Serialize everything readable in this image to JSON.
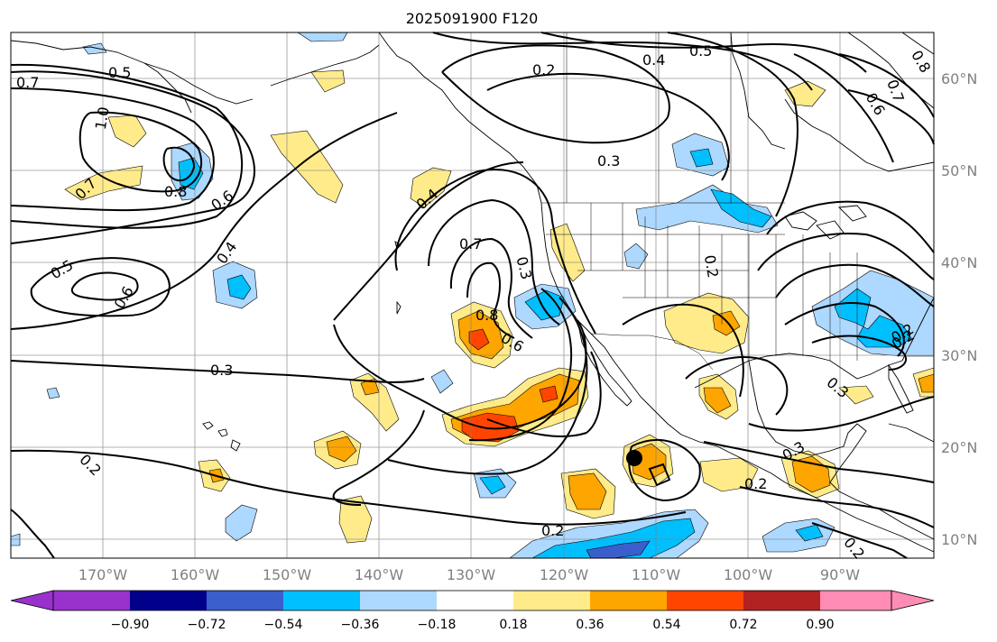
{
  "title": "2025091900 F120",
  "lon_ticks": [
    "170°W",
    "160°W",
    "150°W",
    "140°W",
    "130°W",
    "120°W",
    "110°W",
    "100°W",
    "90°W"
  ],
  "lat_ticks": [
    "60°N",
    "50°N",
    "40°N",
    "30°N",
    "20°N",
    "10°N"
  ],
  "colorbar": {
    "colors": [
      "#9932cc",
      "#00008b",
      "#3a5fcd",
      "#00bfff",
      "#add8ff",
      "#ffffff",
      "#ffeb8a",
      "#ffa500",
      "#ff4500",
      "#b22222",
      "#ff8cb4"
    ],
    "ticks": [
      "−0.90",
      "−0.72",
      "−0.54",
      "−0.36",
      "−0.18",
      "0.18",
      "0.36",
      "0.54",
      "0.72",
      "0.90"
    ]
  },
  "contour_labels": [
    "0.5",
    "0.7",
    "1.0",
    "0.7",
    "0.8",
    "0.6",
    "0.4",
    "0.5",
    "0.6",
    "0.3",
    "0.2",
    "0.4",
    "0.7",
    "0.8",
    "0.6",
    "0.3",
    "0.2",
    "0.2",
    "0.4",
    "0.5",
    "0.8",
    "0.7",
    "0.6",
    "0.3",
    "0.2",
    "0.2",
    "0.3",
    "0.2",
    "0.3",
    "0.2",
    "0.2"
  ],
  "marker": {
    "name": "storm-center-dot",
    "lon": -111.5,
    "lat": 18.9
  }
}
